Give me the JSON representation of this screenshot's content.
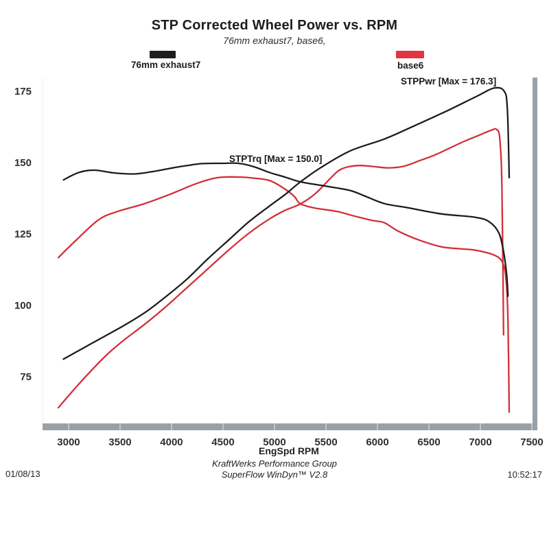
{
  "header": {
    "title": "STP Corrected Wheel Power vs. RPM",
    "subtitle": "76mm exhaust7, base6,"
  },
  "legend": {
    "items": [
      {
        "label": "76mm exhaust7",
        "color": "#1e1e1e"
      },
      {
        "label": "base6",
        "color": "#e13540"
      }
    ]
  },
  "annotations": {
    "stppwr_max": "STPPwr [Max = 176.3]",
    "stptrq_max": "STPTrq [Max = 150.0]"
  },
  "footer": {
    "date": "01/08/13",
    "line1": "KraftWerks Performance Group",
    "line2": "SuperFlow WinDyn™ V2.8",
    "time": "10:52:17"
  },
  "chart_data": {
    "type": "line",
    "title": "STP Corrected Wheel Power vs. RPM",
    "subtitle": "76mm exhaust7, base6,",
    "xlabel": "EngSpd  RPM",
    "ylabel": "",
    "xlim": [
      2747,
      7553
    ],
    "ylim": [
      59,
      180
    ],
    "x_ticks": [
      3000,
      3500,
      4000,
      4500,
      5000,
      5500,
      6000,
      6500,
      7000,
      7500
    ],
    "y_ticks": [
      175,
      150,
      125,
      100,
      75
    ],
    "grid": false,
    "legend_position": "top",
    "axis_color": "#99a1a8",
    "series": [
      {
        "name": "base6 STPPwr",
        "run": "base6",
        "metric": "power",
        "color": "#d22f38",
        "max": 162.0,
        "points": [
          [
            2900,
            64.5
          ],
          [
            3080,
            72
          ],
          [
            3260,
            79
          ],
          [
            3400,
            84
          ],
          [
            3550,
            88.5
          ],
          [
            3750,
            94
          ],
          [
            3950,
            100
          ],
          [
            4150,
            106.5
          ],
          [
            4350,
            113
          ],
          [
            4550,
            119.5
          ],
          [
            4750,
            125.5
          ],
          [
            4950,
            130.5
          ],
          [
            5100,
            133.5
          ],
          [
            5252,
            135.8
          ],
          [
            5400,
            139.5
          ],
          [
            5550,
            145
          ],
          [
            5650,
            148
          ],
          [
            5800,
            149.2
          ],
          [
            5950,
            148.9
          ],
          [
            6100,
            148.4
          ],
          [
            6250,
            148.9
          ],
          [
            6400,
            150.8
          ],
          [
            6550,
            152.8
          ],
          [
            6700,
            155.3
          ],
          [
            6850,
            157.8
          ],
          [
            7000,
            160
          ],
          [
            7100,
            161.5
          ],
          [
            7160,
            161.8
          ],
          [
            7190,
            158
          ],
          [
            7210,
            140
          ],
          [
            7225,
            90
          ]
        ]
      },
      {
        "name": "base6 STPTrq",
        "run": "base6",
        "metric": "torque",
        "color": "#d22f38",
        "max": 145.0,
        "points": [
          [
            2900,
            117
          ],
          [
            3070,
            123
          ],
          [
            3290,
            130.2
          ],
          [
            3470,
            133.1
          ],
          [
            3730,
            135.8
          ],
          [
            3980,
            139.1
          ],
          [
            4250,
            143
          ],
          [
            4450,
            145
          ],
          [
            4650,
            145.2
          ],
          [
            4800,
            144.8
          ],
          [
            4950,
            144
          ],
          [
            5080,
            141.5
          ],
          [
            5190,
            138.5
          ],
          [
            5252,
            135.8
          ],
          [
            5400,
            134.3
          ],
          [
            5600,
            133.2
          ],
          [
            5800,
            131.3
          ],
          [
            5950,
            130
          ],
          [
            6067,
            129.2
          ],
          [
            6200,
            126.3
          ],
          [
            6400,
            123.2
          ],
          [
            6620,
            120.8
          ],
          [
            6800,
            120.1
          ],
          [
            6953,
            119.6
          ],
          [
            7133,
            117.9
          ],
          [
            7215,
            115.3
          ],
          [
            7250,
            109
          ],
          [
            7268,
            95
          ],
          [
            7280,
            63
          ]
        ]
      },
      {
        "name": "76mm exhaust7 STPPwr",
        "run": "76mm exhaust7",
        "metric": "power",
        "color": "#1c1c1c",
        "max": 176.3,
        "points": [
          [
            2950,
            81.5
          ],
          [
            3150,
            85.5
          ],
          [
            3350,
            89.5
          ],
          [
            3550,
            93.5
          ],
          [
            3750,
            98
          ],
          [
            3950,
            103.5
          ],
          [
            4150,
            109.5
          ],
          [
            4350,
            116.5
          ],
          [
            4550,
            123
          ],
          [
            4750,
            129.5
          ],
          [
            4950,
            135
          ],
          [
            5100,
            139
          ],
          [
            5252,
            143.5
          ],
          [
            5450,
            148.5
          ],
          [
            5733,
            154.3
          ],
          [
            6067,
            158.5
          ],
          [
            6333,
            162.7
          ],
          [
            6667,
            168.2
          ],
          [
            6967,
            173.5
          ],
          [
            7130,
            176.3
          ],
          [
            7230,
            175.3
          ],
          [
            7262,
            169
          ],
          [
            7280,
            145
          ]
        ]
      },
      {
        "name": "76mm exhaust7 STPTrq",
        "run": "76mm exhaust7",
        "metric": "torque",
        "color": "#1c1c1c",
        "max": 150.0,
        "points": [
          [
            2950,
            144.2
          ],
          [
            3100,
            146.8
          ],
          [
            3250,
            147.6
          ],
          [
            3450,
            146.6
          ],
          [
            3650,
            146.3
          ],
          [
            3850,
            147.3
          ],
          [
            3980,
            148.2
          ],
          [
            4150,
            149.2
          ],
          [
            4300,
            149.9
          ],
          [
            4500,
            150
          ],
          [
            4650,
            150
          ],
          [
            4800,
            148.8
          ],
          [
            4950,
            146.8
          ],
          [
            5100,
            145.2
          ],
          [
            5252,
            143.5
          ],
          [
            5500,
            142
          ],
          [
            5733,
            140.5
          ],
          [
            5900,
            138.2
          ],
          [
            6067,
            135.9
          ],
          [
            6287,
            134.5
          ],
          [
            6620,
            132.3
          ],
          [
            6953,
            131.1
          ],
          [
            7087,
            129.5
          ],
          [
            7180,
            125.6
          ],
          [
            7225,
            119.1
          ],
          [
            7255,
            111
          ],
          [
            7268,
            103.5
          ]
        ]
      }
    ]
  }
}
